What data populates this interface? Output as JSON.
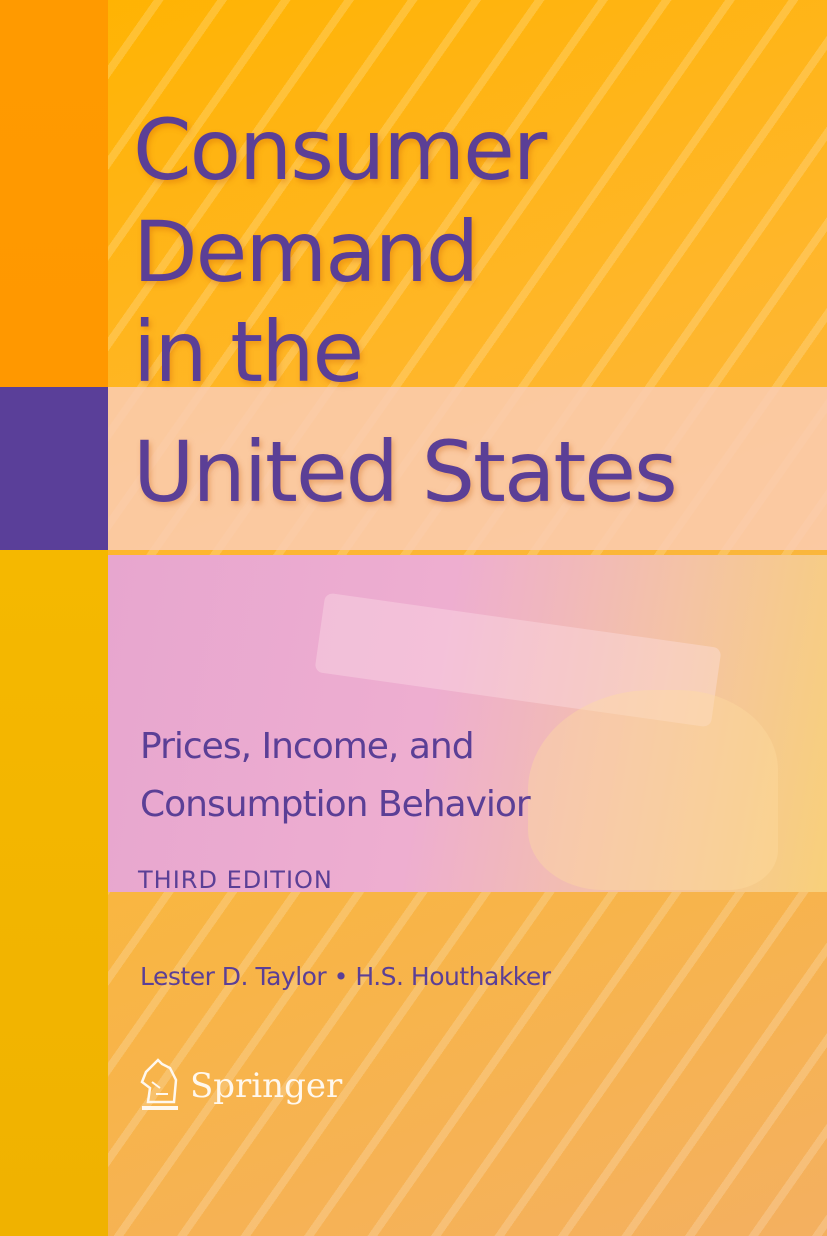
{
  "cover": {
    "title_lines": [
      "Consumer",
      "Demand",
      "in the",
      "United States"
    ],
    "subtitle_lines": [
      "Prices, Income, and",
      "Consumption Behavior"
    ],
    "edition": "THIRD EDITION",
    "authors": "Lester D. Taylor • H.S. Houthakker",
    "publisher": "Springer",
    "publisher_logo_icon": "knight-horse-icon",
    "colors": {
      "title": "#5b3f96",
      "accent_purple": "#5a3f99",
      "background_orange": "#ffb300"
    }
  }
}
